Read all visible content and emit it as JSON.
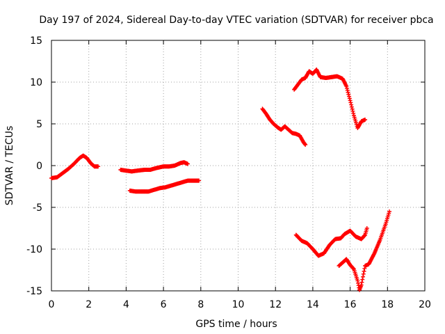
{
  "chart_data": {
    "type": "scatter",
    "title": "Day 197 of 2024, Sidereal Day-to-day VTEC variation (SDTVAR) for receiver pbca",
    "xlabel": "GPS time / hours",
    "ylabel": "SDTVAR / TECUs",
    "xlim": [
      0,
      20
    ],
    "ylim": [
      -15,
      15
    ],
    "xticks": [
      0,
      2,
      4,
      6,
      8,
      10,
      12,
      14,
      16,
      18,
      20
    ],
    "yticks": [
      -15,
      -10,
      -5,
      0,
      5,
      10,
      15
    ],
    "grid": true,
    "marker": "+",
    "series_color": "#ff0000",
    "series": [
      {
        "name": "segment-1",
        "points": [
          [
            0.0,
            -1.5
          ],
          [
            0.3,
            -1.4
          ],
          [
            0.6,
            -0.9
          ],
          [
            0.9,
            -0.4
          ],
          [
            1.2,
            0.2
          ],
          [
            1.5,
            0.9
          ],
          [
            1.7,
            1.2
          ],
          [
            1.9,
            0.9
          ],
          [
            2.1,
            0.3
          ],
          [
            2.3,
            -0.1
          ],
          [
            2.5,
            -0.1
          ]
        ]
      },
      {
        "name": "segment-2",
        "points": [
          [
            3.7,
            -0.5
          ],
          [
            4.0,
            -0.6
          ],
          [
            4.3,
            -0.7
          ],
          [
            4.6,
            -0.6
          ],
          [
            5.0,
            -0.5
          ],
          [
            5.3,
            -0.5
          ],
          [
            5.6,
            -0.3
          ],
          [
            6.0,
            -0.1
          ],
          [
            6.3,
            -0.1
          ],
          [
            6.6,
            0.0
          ],
          [
            6.9,
            0.3
          ],
          [
            7.1,
            0.4
          ],
          [
            7.3,
            0.2
          ]
        ]
      },
      {
        "name": "segment-3",
        "points": [
          [
            4.2,
            -3.0
          ],
          [
            4.5,
            -3.1
          ],
          [
            4.8,
            -3.1
          ],
          [
            5.2,
            -3.1
          ],
          [
            5.5,
            -2.9
          ],
          [
            5.8,
            -2.7
          ],
          [
            6.1,
            -2.6
          ],
          [
            6.4,
            -2.4
          ],
          [
            6.7,
            -2.2
          ],
          [
            7.0,
            -2.0
          ],
          [
            7.3,
            -1.8
          ],
          [
            7.6,
            -1.8
          ],
          [
            7.9,
            -1.8
          ]
        ]
      },
      {
        "name": "segment-4",
        "points": [
          [
            11.3,
            6.8
          ],
          [
            11.5,
            6.2
          ],
          [
            11.7,
            5.5
          ],
          [
            11.9,
            5.0
          ],
          [
            12.1,
            4.6
          ],
          [
            12.3,
            4.3
          ],
          [
            12.5,
            4.7
          ],
          [
            12.7,
            4.3
          ],
          [
            12.9,
            3.9
          ],
          [
            13.1,
            3.8
          ],
          [
            13.3,
            3.6
          ],
          [
            13.5,
            2.8
          ],
          [
            13.6,
            2.5
          ]
        ]
      },
      {
        "name": "segment-5",
        "points": [
          [
            13.0,
            9.1
          ],
          [
            13.2,
            9.7
          ],
          [
            13.4,
            10.3
          ],
          [
            13.6,
            10.5
          ],
          [
            13.8,
            11.3
          ],
          [
            14.0,
            11.0
          ],
          [
            14.2,
            11.5
          ],
          [
            14.4,
            10.6
          ],
          [
            14.7,
            10.5
          ],
          [
            15.0,
            10.6
          ],
          [
            15.3,
            10.7
          ],
          [
            15.6,
            10.4
          ],
          [
            15.8,
            9.5
          ],
          [
            16.0,
            7.8
          ],
          [
            16.2,
            6.0
          ],
          [
            16.4,
            4.5
          ],
          [
            16.6,
            5.3
          ],
          [
            16.8,
            5.5
          ]
        ]
      },
      {
        "name": "segment-6",
        "points": [
          [
            13.1,
            -8.3
          ],
          [
            13.4,
            -9.0
          ],
          [
            13.7,
            -9.3
          ],
          [
            14.0,
            -10.0
          ],
          [
            14.3,
            -10.8
          ],
          [
            14.6,
            -10.5
          ],
          [
            14.9,
            -9.5
          ],
          [
            15.2,
            -8.8
          ],
          [
            15.5,
            -8.7
          ],
          [
            15.7,
            -8.2
          ],
          [
            16.0,
            -7.8
          ],
          [
            16.3,
            -8.5
          ],
          [
            16.6,
            -8.8
          ],
          [
            16.8,
            -8.3
          ],
          [
            16.9,
            -7.5
          ]
        ]
      },
      {
        "name": "segment-7",
        "points": [
          [
            15.4,
            -12.0
          ],
          [
            15.6,
            -11.6
          ],
          [
            15.8,
            -11.2
          ],
          [
            16.0,
            -11.9
          ],
          [
            16.2,
            -12.4
          ],
          [
            16.4,
            -13.8
          ],
          [
            16.5,
            -14.9
          ],
          [
            16.6,
            -14.3
          ],
          [
            16.8,
            -12.0
          ],
          [
            17.0,
            -11.8
          ],
          [
            17.3,
            -10.5
          ],
          [
            17.6,
            -8.9
          ],
          [
            17.9,
            -7.0
          ],
          [
            18.1,
            -5.5
          ]
        ]
      }
    ]
  }
}
